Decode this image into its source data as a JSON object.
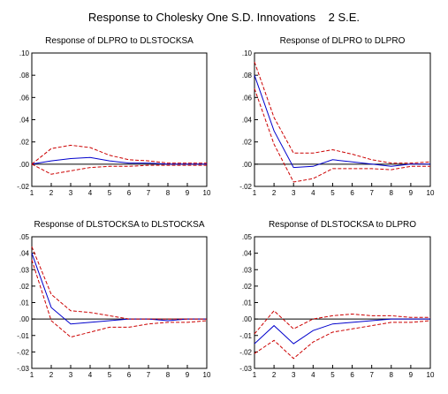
{
  "title": "Response to Cholesky One S.D. Innovations",
  "band_label": "2 S.E.",
  "colors": {
    "response": "#0000cc",
    "band": "#cc0000",
    "zero": "#000000",
    "frame": "#000000"
  },
  "chart_data": [
    {
      "type": "line",
      "title": "Response of DLPRO to DLSTOCKSA",
      "x": [
        1,
        2,
        3,
        4,
        5,
        6,
        7,
        8,
        9,
        10
      ],
      "ylim": [
        -0.02,
        0.1
      ],
      "yticks": [
        -0.02,
        0.0,
        0.02,
        0.04,
        0.06,
        0.08,
        0.1
      ],
      "ytick_labels": [
        "-.02",
        ".00",
        ".02",
        ".04",
        ".06",
        ".08",
        ".10"
      ],
      "series": [
        {
          "role": "response",
          "values": [
            0.0,
            0.003,
            0.005,
            0.006,
            0.003,
            0.001,
            0.001,
            0.0,
            0.0,
            0.0
          ]
        },
        {
          "role": "upper",
          "values": [
            0.0,
            0.014,
            0.017,
            0.015,
            0.008,
            0.004,
            0.003,
            0.001,
            0.001,
            0.001
          ]
        },
        {
          "role": "lower",
          "values": [
            0.0,
            -0.009,
            -0.006,
            -0.003,
            -0.002,
            -0.002,
            -0.001,
            -0.001,
            -0.001,
            -0.001
          ]
        }
      ]
    },
    {
      "type": "line",
      "title": "Response of DLPRO to DLPRO",
      "x": [
        1,
        2,
        3,
        4,
        5,
        6,
        7,
        8,
        9,
        10
      ],
      "ylim": [
        -0.02,
        0.1
      ],
      "yticks": [
        -0.02,
        0.0,
        0.02,
        0.04,
        0.06,
        0.08,
        0.1
      ],
      "ytick_labels": [
        "-.02",
        ".00",
        ".02",
        ".04",
        ".06",
        ".08",
        ".10"
      ],
      "series": [
        {
          "role": "response",
          "values": [
            0.08,
            0.03,
            -0.003,
            -0.002,
            0.004,
            0.002,
            0.0,
            -0.002,
            0.0,
            0.0
          ]
        },
        {
          "role": "upper",
          "values": [
            0.092,
            0.042,
            0.01,
            0.01,
            0.013,
            0.009,
            0.004,
            0.001,
            0.001,
            0.002
          ]
        },
        {
          "role": "lower",
          "values": [
            0.068,
            0.018,
            -0.016,
            -0.013,
            -0.004,
            -0.004,
            -0.004,
            -0.005,
            -0.002,
            -0.002
          ]
        }
      ]
    },
    {
      "type": "line",
      "title": "Response of DLSTOCKSA to DLSTOCKSA",
      "x": [
        1,
        2,
        3,
        4,
        5,
        6,
        7,
        8,
        9,
        10
      ],
      "ylim": [
        -0.03,
        0.05
      ],
      "yticks": [
        -0.03,
        -0.02,
        -0.01,
        0.0,
        0.01,
        0.02,
        0.03,
        0.04,
        0.05
      ],
      "ytick_labels": [
        "-.03",
        "-.02",
        "-.01",
        ".00",
        ".01",
        ".02",
        ".03",
        ".04",
        ".05"
      ],
      "series": [
        {
          "role": "response",
          "values": [
            0.04,
            0.007,
            -0.003,
            -0.002,
            -0.001,
            0.0,
            0.0,
            -0.001,
            0.0,
            0.0
          ]
        },
        {
          "role": "upper",
          "values": [
            0.044,
            0.015,
            0.005,
            0.004,
            0.002,
            0.0,
            0.0,
            0.0,
            0.0,
            0.0
          ]
        },
        {
          "role": "lower",
          "values": [
            0.036,
            -0.001,
            -0.011,
            -0.008,
            -0.005,
            -0.005,
            -0.003,
            -0.002,
            -0.002,
            -0.001
          ]
        }
      ]
    },
    {
      "type": "line",
      "title": "Response of DLSTOCKSA to DLPRO",
      "x": [
        1,
        2,
        3,
        4,
        5,
        6,
        7,
        8,
        9,
        10
      ],
      "ylim": [
        -0.03,
        0.05
      ],
      "yticks": [
        -0.03,
        -0.02,
        -0.01,
        0.0,
        0.01,
        0.02,
        0.03,
        0.04,
        0.05
      ],
      "ytick_labels": [
        "-.03",
        "-.02",
        "-.01",
        ".00",
        ".01",
        ".02",
        ".03",
        ".04",
        ".05"
      ],
      "series": [
        {
          "role": "response",
          "values": [
            -0.015,
            -0.004,
            -0.015,
            -0.007,
            -0.003,
            -0.002,
            -0.001,
            0.0,
            0.0,
            0.0
          ]
        },
        {
          "role": "upper",
          "values": [
            -0.009,
            0.005,
            -0.006,
            0.0,
            0.002,
            0.003,
            0.002,
            0.002,
            0.001,
            0.001
          ]
        },
        {
          "role": "lower",
          "values": [
            -0.021,
            -0.013,
            -0.024,
            -0.014,
            -0.008,
            -0.006,
            -0.004,
            -0.002,
            -0.002,
            -0.001
          ]
        }
      ]
    }
  ]
}
